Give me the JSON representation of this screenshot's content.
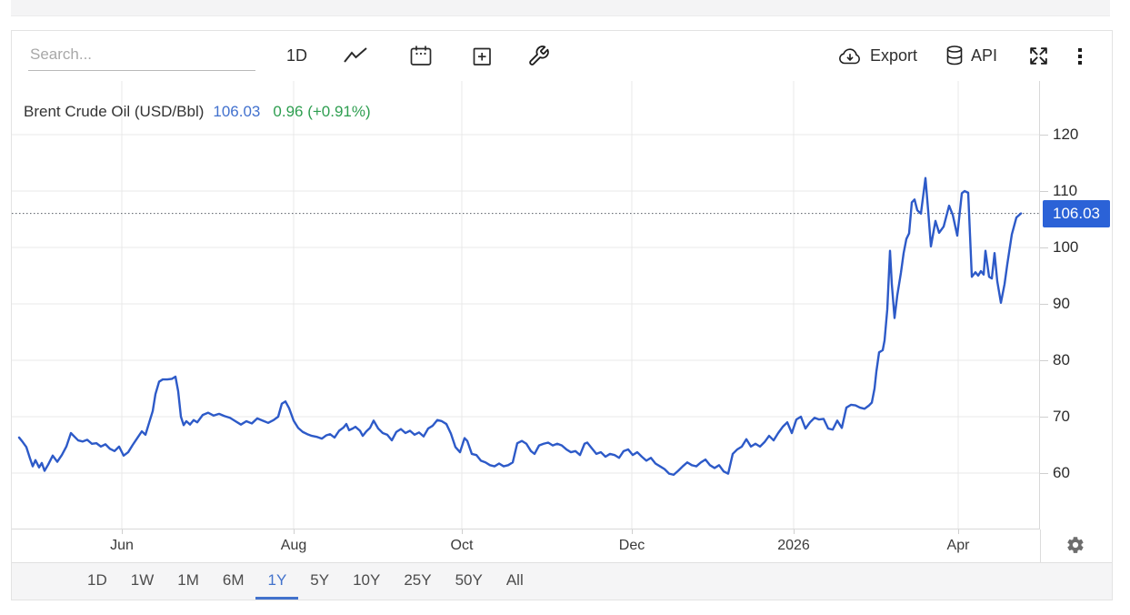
{
  "toolbar": {
    "search_placeholder": "Search...",
    "interval_label": "1D",
    "export_label": "Export",
    "api_label": "API"
  },
  "legend": {
    "series_name": "Brent Crude Oil (USD/Bbl)",
    "price": "106.03",
    "change": "0.96 (+0.91%)"
  },
  "range_tabs": {
    "options": [
      "1D",
      "1W",
      "1M",
      "6M",
      "1Y",
      "5Y",
      "10Y",
      "25Y",
      "50Y",
      "All"
    ],
    "active": "1Y"
  },
  "colors": {
    "series_line": "#2d5ac8",
    "badge_bg": "#2b62d7",
    "price_text": "#4271ce",
    "change_text": "#2e9e50",
    "active_tab": "#4272cc"
  },
  "chart_data": {
    "type": "line",
    "title": "Brent Crude Oil (USD/Bbl)",
    "ylabel": "USD/Bbl",
    "time_range_selected": "1Y",
    "x_window": "May 2025 to May 2026",
    "grid": true,
    "y_ticks": [
      120,
      110,
      100,
      90,
      80,
      70,
      60
    ],
    "y_visible_range": [
      50,
      129.5
    ],
    "x_ticks": [
      {
        "label": "Jun",
        "t": 113
      },
      {
        "label": "Aug",
        "t": 302
      },
      {
        "label": "Oct",
        "t": 487
      },
      {
        "label": "Dec",
        "t": 674
      },
      {
        "label": "2026",
        "t": 852
      },
      {
        "label": "Apr",
        "t": 1033
      }
    ],
    "t_max": 1102,
    "last_price": 106.03,
    "last_price_label": "106.03",
    "dotted_line_at": 106.03,
    "points": [
      [
        0,
        66.3
      ],
      [
        4,
        65.5
      ],
      [
        8,
        64.6
      ],
      [
        12,
        62.6
      ],
      [
        15,
        61.2
      ],
      [
        18,
        62.3
      ],
      [
        22,
        61.0
      ],
      [
        25,
        61.8
      ],
      [
        28,
        60.4
      ],
      [
        32,
        61.5
      ],
      [
        37,
        63.1
      ],
      [
        42,
        62.0
      ],
      [
        47,
        63.2
      ],
      [
        52,
        64.7
      ],
      [
        57,
        67.1
      ],
      [
        60,
        66.6
      ],
      [
        65,
        65.8
      ],
      [
        70,
        65.6
      ],
      [
        75,
        65.9
      ],
      [
        80,
        65.2
      ],
      [
        85,
        65.3
      ],
      [
        90,
        64.7
      ],
      [
        95,
        65.1
      ],
      [
        100,
        64.3
      ],
      [
        105,
        63.9
      ],
      [
        110,
        64.7
      ],
      [
        115,
        63.1
      ],
      [
        120,
        63.7
      ],
      [
        125,
        65.0
      ],
      [
        130,
        66.2
      ],
      [
        135,
        67.4
      ],
      [
        139,
        66.8
      ],
      [
        143,
        68.9
      ],
      [
        147,
        71.0
      ],
      [
        150,
        74.0
      ],
      [
        154,
        76.2
      ],
      [
        158,
        76.6
      ],
      [
        163,
        76.6
      ],
      [
        168,
        76.7
      ],
      [
        172,
        77.1
      ],
      [
        175,
        74.5
      ],
      [
        178,
        70.0
      ],
      [
        181,
        68.5
      ],
      [
        184,
        69.2
      ],
      [
        188,
        68.6
      ],
      [
        192,
        69.4
      ],
      [
        196,
        69.0
      ],
      [
        202,
        70.3
      ],
      [
        208,
        70.7
      ],
      [
        214,
        70.2
      ],
      [
        220,
        70.5
      ],
      [
        226,
        70.1
      ],
      [
        232,
        69.8
      ],
      [
        238,
        69.2
      ],
      [
        244,
        68.6
      ],
      [
        250,
        69.2
      ],
      [
        256,
        68.8
      ],
      [
        262,
        69.7
      ],
      [
        268,
        69.3
      ],
      [
        274,
        68.9
      ],
      [
        280,
        69.4
      ],
      [
        285,
        70.0
      ],
      [
        289,
        72.3
      ],
      [
        293,
        72.7
      ],
      [
        297,
        71.5
      ],
      [
        302,
        69.3
      ],
      [
        307,
        68.0
      ],
      [
        312,
        67.3
      ],
      [
        317,
        66.9
      ],
      [
        322,
        66.6
      ],
      [
        328,
        66.4
      ],
      [
        333,
        66.1
      ],
      [
        338,
        66.7
      ],
      [
        342,
        66.9
      ],
      [
        347,
        66.3
      ],
      [
        352,
        67.5
      ],
      [
        357,
        68.1
      ],
      [
        360,
        68.7
      ],
      [
        363,
        67.6
      ],
      [
        367,
        67.9
      ],
      [
        370,
        68.2
      ],
      [
        375,
        67.5
      ],
      [
        378,
        66.6
      ],
      [
        382,
        67.4
      ],
      [
        386,
        68.0
      ],
      [
        390,
        69.3
      ],
      [
        395,
        67.9
      ],
      [
        400,
        67.1
      ],
      [
        405,
        66.8
      ],
      [
        410,
        65.8
      ],
      [
        415,
        67.3
      ],
      [
        420,
        67.8
      ],
      [
        425,
        67.1
      ],
      [
        430,
        67.5
      ],
      [
        435,
        66.8
      ],
      [
        440,
        67.2
      ],
      [
        445,
        66.5
      ],
      [
        450,
        67.9
      ],
      [
        455,
        68.4
      ],
      [
        460,
        69.4
      ],
      [
        465,
        69.2
      ],
      [
        470,
        68.7
      ],
      [
        475,
        67.0
      ],
      [
        480,
        64.6
      ],
      [
        485,
        63.7
      ],
      [
        490,
        66.2
      ],
      [
        493,
        65.7
      ],
      [
        498,
        63.4
      ],
      [
        503,
        63.2
      ],
      [
        508,
        62.2
      ],
      [
        513,
        61.9
      ],
      [
        518,
        61.4
      ],
      [
        523,
        61.2
      ],
      [
        528,
        61.7
      ],
      [
        533,
        61.2
      ],
      [
        538,
        61.4
      ],
      [
        543,
        61.9
      ],
      [
        548,
        65.3
      ],
      [
        553,
        65.7
      ],
      [
        558,
        65.2
      ],
      [
        563,
        63.9
      ],
      [
        567,
        63.4
      ],
      [
        572,
        64.9
      ],
      [
        577,
        65.2
      ],
      [
        582,
        65.4
      ],
      [
        587,
        64.9
      ],
      [
        592,
        65.2
      ],
      [
        597,
        64.9
      ],
      [
        602,
        64.2
      ],
      [
        607,
        63.7
      ],
      [
        612,
        63.9
      ],
      [
        617,
        63.2
      ],
      [
        622,
        65.2
      ],
      [
        625,
        65.4
      ],
      [
        630,
        64.4
      ],
      [
        635,
        63.4
      ],
      [
        640,
        63.7
      ],
      [
        645,
        62.9
      ],
      [
        650,
        63.4
      ],
      [
        655,
        63.2
      ],
      [
        660,
        62.7
      ],
      [
        665,
        63.9
      ],
      [
        670,
        64.2
      ],
      [
        675,
        63.2
      ],
      [
        680,
        63.7
      ],
      [
        685,
        62.9
      ],
      [
        690,
        62.2
      ],
      [
        695,
        62.7
      ],
      [
        700,
        61.7
      ],
      [
        705,
        61.2
      ],
      [
        710,
        60.7
      ],
      [
        715,
        59.9
      ],
      [
        720,
        59.7
      ],
      [
        725,
        60.4
      ],
      [
        730,
        61.2
      ],
      [
        735,
        61.9
      ],
      [
        740,
        61.4
      ],
      [
        745,
        61.2
      ],
      [
        750,
        61.9
      ],
      [
        755,
        62.4
      ],
      [
        760,
        61.4
      ],
      [
        765,
        60.9
      ],
      [
        770,
        61.4
      ],
      [
        775,
        60.3
      ],
      [
        780,
        59.9
      ],
      [
        785,
        63.4
      ],
      [
        790,
        64.2
      ],
      [
        795,
        64.7
      ],
      [
        800,
        66.0
      ],
      [
        805,
        64.7
      ],
      [
        810,
        65.2
      ],
      [
        815,
        64.7
      ],
      [
        820,
        65.5
      ],
      [
        825,
        66.6
      ],
      [
        830,
        65.8
      ],
      [
        835,
        67.1
      ],
      [
        840,
        68.2
      ],
      [
        845,
        69.0
      ],
      [
        850,
        67.1
      ],
      [
        855,
        69.5
      ],
      [
        860,
        70.0
      ],
      [
        865,
        67.9
      ],
      [
        870,
        69.0
      ],
      [
        875,
        69.8
      ],
      [
        880,
        69.5
      ],
      [
        885,
        69.6
      ],
      [
        890,
        67.9
      ],
      [
        895,
        67.7
      ],
      [
        900,
        69.3
      ],
      [
        905,
        68.0
      ],
      [
        910,
        71.6
      ],
      [
        915,
        72.1
      ],
      [
        920,
        72.0
      ],
      [
        925,
        71.6
      ],
      [
        930,
        71.4
      ],
      [
        935,
        72.0
      ],
      [
        938,
        72.5
      ],
      [
        941,
        75.0
      ],
      [
        943,
        78.0
      ],
      [
        946,
        81.4
      ],
      [
        950,
        81.8
      ],
      [
        952,
        83.5
      ],
      [
        955,
        89.0
      ],
      [
        958,
        99.4
      ],
      [
        960,
        93.5
      ],
      [
        963,
        87.5
      ],
      [
        966,
        91.5
      ],
      [
        970,
        95.5
      ],
      [
        973,
        99.0
      ],
      [
        976,
        101.5
      ],
      [
        979,
        102.5
      ],
      [
        982,
        108.0
      ],
      [
        985,
        108.5
      ],
      [
        988,
        106.6
      ],
      [
        992,
        106.0
      ],
      [
        997,
        112.3
      ],
      [
        1000,
        106.5
      ],
      [
        1003,
        100.2
      ],
      [
        1008,
        104.7
      ],
      [
        1012,
        102.6
      ],
      [
        1017,
        103.7
      ],
      [
        1023,
        107.4
      ],
      [
        1027,
        105.8
      ],
      [
        1032,
        102.1
      ],
      [
        1037,
        109.6
      ],
      [
        1040,
        110.0
      ],
      [
        1044,
        109.7
      ],
      [
        1048,
        94.8
      ],
      [
        1052,
        95.6
      ],
      [
        1055,
        95.0
      ],
      [
        1058,
        95.8
      ],
      [
        1061,
        95.2
      ],
      [
        1063,
        99.4
      ],
      [
        1067,
        94.8
      ],
      [
        1070,
        94.5
      ],
      [
        1073,
        99.0
      ],
      [
        1076,
        94.0
      ],
      [
        1080,
        90.2
      ],
      [
        1084,
        93.5
      ],
      [
        1087,
        97.0
      ],
      [
        1092,
        102.3
      ],
      [
        1097,
        105.3
      ],
      [
        1102,
        106.03
      ]
    ]
  }
}
